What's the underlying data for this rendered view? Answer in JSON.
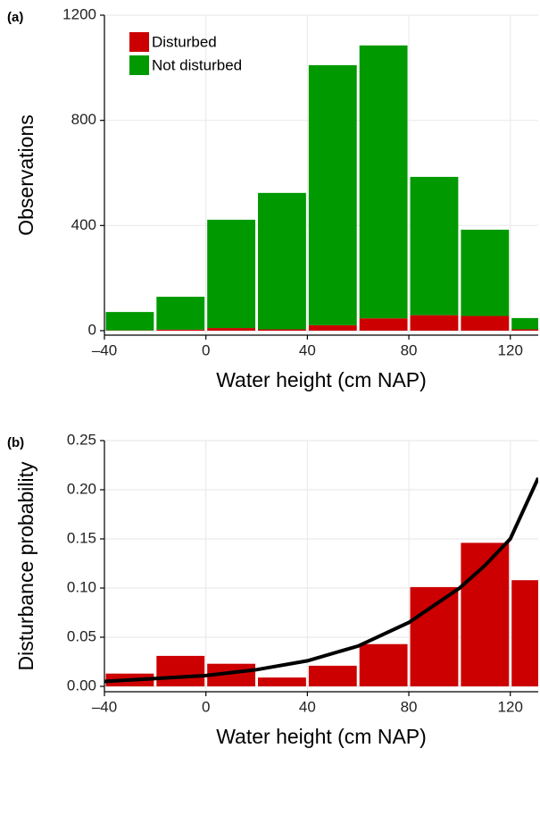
{
  "chart_data": [
    {
      "type": "stacked_histogram",
      "panel_label": "(a)",
      "x_label": "Water height (cm NAP)",
      "y_label": "Observations",
      "bins": [
        -40,
        -20,
        0,
        20,
        40,
        60,
        80,
        100,
        120,
        140
      ],
      "series": [
        {
          "name": "Disturbed",
          "color": "#cc0000",
          "values": [
            1,
            4,
            10,
            5,
            21,
            47,
            59,
            56,
            5
          ]
        },
        {
          "name": "Not disturbed",
          "color": "#009900",
          "values": [
            70,
            125,
            412,
            519,
            989,
            1038,
            526,
            328,
            43
          ]
        }
      ],
      "xlim": [
        -40,
        131
      ],
      "xticks": [
        {
          "value": -40,
          "label": "–40"
        },
        0,
        40,
        80,
        120
      ],
      "ylim": [
        0,
        1200
      ],
      "yticks": [
        0,
        400,
        800,
        1200
      ],
      "grid": true,
      "legend": "top-left"
    },
    {
      "type": "histogram_line",
      "panel_label": "(b)",
      "x_label": "Water height (cm NAP)",
      "y_label": "Disturbance probability",
      "bins": [
        -40,
        -20,
        0,
        20,
        40,
        60,
        80,
        100,
        120,
        140
      ],
      "values": [
        0.013,
        0.031,
        0.023,
        0.009,
        0.021,
        0.043,
        0.101,
        0.146,
        0.108
      ],
      "color": "#cc0000",
      "curve": {
        "color": "#000000",
        "x": [
          -40,
          -20,
          0,
          20,
          40,
          60,
          80,
          100,
          110,
          120,
          131
        ],
        "values": [
          0.005,
          0.008,
          0.011,
          0.017,
          0.026,
          0.041,
          0.065,
          0.1,
          0.123,
          0.15,
          0.212
        ]
      },
      "xlim": [
        -40,
        131
      ],
      "xticks": [
        {
          "value": -40,
          "label": "–40"
        },
        0,
        40,
        80,
        120
      ],
      "ylim": [
        0,
        0.25
      ],
      "yticks": [
        {
          "value": 0,
          "label": "0.00"
        },
        {
          "value": 0.05,
          "label": "0.05"
        },
        {
          "value": 0.1,
          "label": "0.10"
        },
        {
          "value": 0.15,
          "label": "0.15"
        },
        {
          "value": 0.2,
          "label": "0.20"
        },
        {
          "value": 0.25,
          "label": "0.25"
        }
      ],
      "grid": true
    }
  ]
}
